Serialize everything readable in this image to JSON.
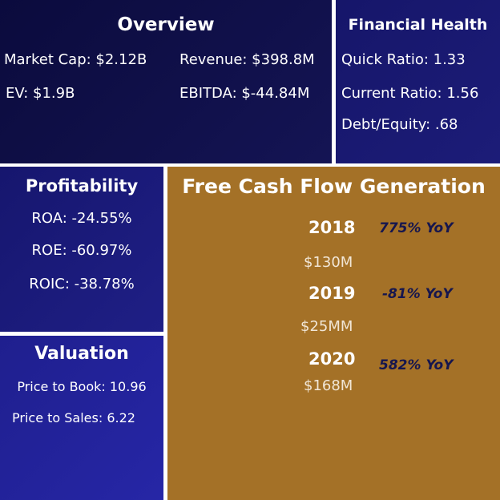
{
  "overview": {
    "title": "Overview",
    "market_cap": "Market Cap: $2.12B",
    "revenue": "Revenue: $398.8M",
    "ev": "EV: $1.9B",
    "ebitda": "EBITDA: $-44.84M"
  },
  "financial_health": {
    "title": "Financial Health",
    "quick_ratio": "Quick Ratio: 1.33",
    "current_ratio": "Current Ratio: 1.56",
    "debt_equity": "Debt/Equity: .68"
  },
  "profitability": {
    "title": "Profitability",
    "roa": "ROA: -24.55%",
    "roe": "ROE: -60.97%",
    "roic": "ROIC: -38.78%"
  },
  "valuation": {
    "title": "Valuation",
    "price_to_book": "Price to Book: 10.96",
    "price_to_sales": "Price to Sales: 6.22"
  },
  "fcf": {
    "title": "Free Cash Flow Generation",
    "entries": [
      {
        "year": "2018",
        "amount": "$130M",
        "yoy": "775% YoY"
      },
      {
        "year": "2019",
        "amount": "$25MM",
        "yoy": "-81% YoY"
      },
      {
        "year": "2020",
        "amount": "$168M",
        "yoy": "582% YoY"
      }
    ]
  },
  "colors": {
    "navy_dark": "#0b0b3d",
    "navy": "#1c1c78",
    "blue": "#2626a6",
    "gold": "#a47127",
    "yoy_text": "#16164e"
  }
}
